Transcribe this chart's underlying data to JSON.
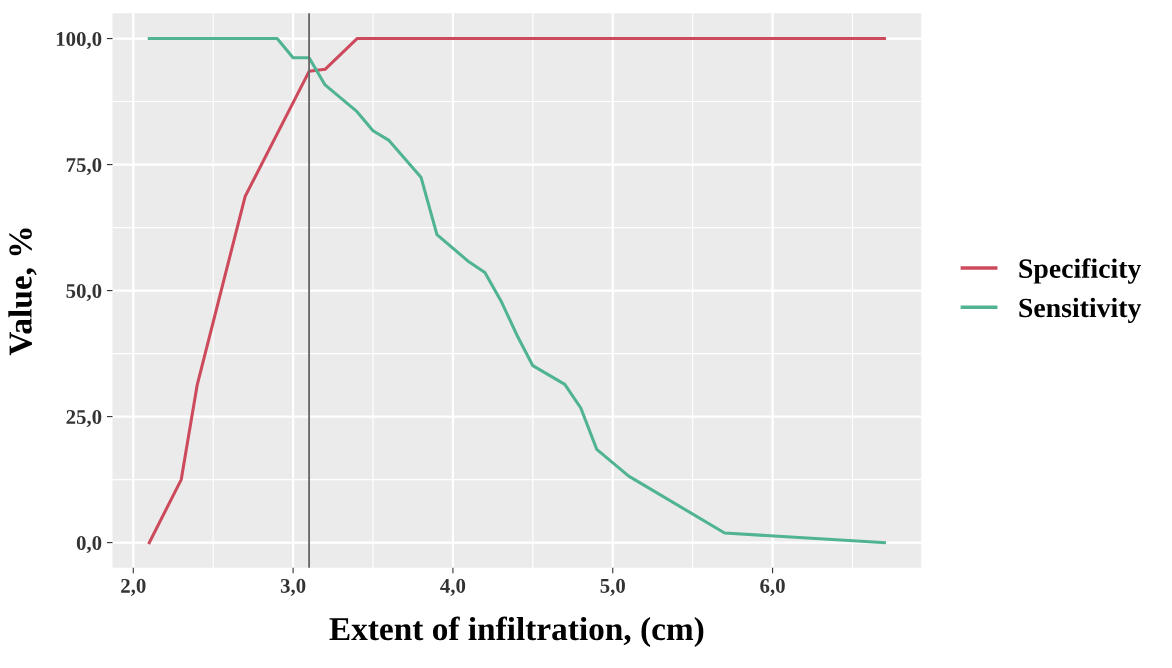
{
  "chart_data": {
    "type": "line",
    "xlabel": "Extent of infiltration, (cm)",
    "ylabel": "Value, %",
    "xlim": [
      1.87,
      6.93
    ],
    "ylim": [
      -5,
      105
    ],
    "xticks": [
      {
        "value": 2,
        "label": "2,0"
      },
      {
        "value": 3,
        "label": "3,0"
      },
      {
        "value": 4,
        "label": "4,0"
      },
      {
        "value": 5,
        "label": "5,0"
      },
      {
        "value": 6,
        "label": "6,0"
      }
    ],
    "yticks": [
      {
        "value": 0,
        "label": "0,0"
      },
      {
        "value": 25,
        "label": "25,0"
      },
      {
        "value": 50,
        "label": "50,0"
      },
      {
        "value": 75,
        "label": "75,0"
      },
      {
        "value": 100,
        "label": "100,0"
      }
    ],
    "grid": true,
    "legend": "right",
    "line_style": "solid",
    "ref_lines": [
      {
        "axis": "x",
        "value": 3.1,
        "color": "#666666"
      }
    ],
    "series": [
      {
        "name": "Specificity",
        "color": "#cc4a5c",
        "x": [
          2.1,
          2.3,
          2.4,
          2.7,
          3.1,
          3.2,
          3.4,
          6.7
        ],
        "values": [
          0,
          12.5,
          31.3,
          68.7,
          93.5,
          93.9,
          100,
          100
        ]
      },
      {
        "name": "Sensitivity",
        "color": "#4fb394",
        "x": [
          2.1,
          2.9,
          3.0,
          3.1,
          3.2,
          3.4,
          3.5,
          3.6,
          3.8,
          3.9,
          4.1,
          4.2,
          4.3,
          4.4,
          4.5,
          4.7,
          4.8,
          4.9,
          5.1,
          5.7,
          6.7
        ],
        "values": [
          100,
          100,
          96.2,
          96.2,
          90.8,
          85.5,
          81.7,
          79.8,
          72.5,
          61.1,
          55.7,
          53.6,
          48,
          41.2,
          35.1,
          31.4,
          26.7,
          18.5,
          13.2,
          1.9,
          0
        ]
      }
    ]
  }
}
